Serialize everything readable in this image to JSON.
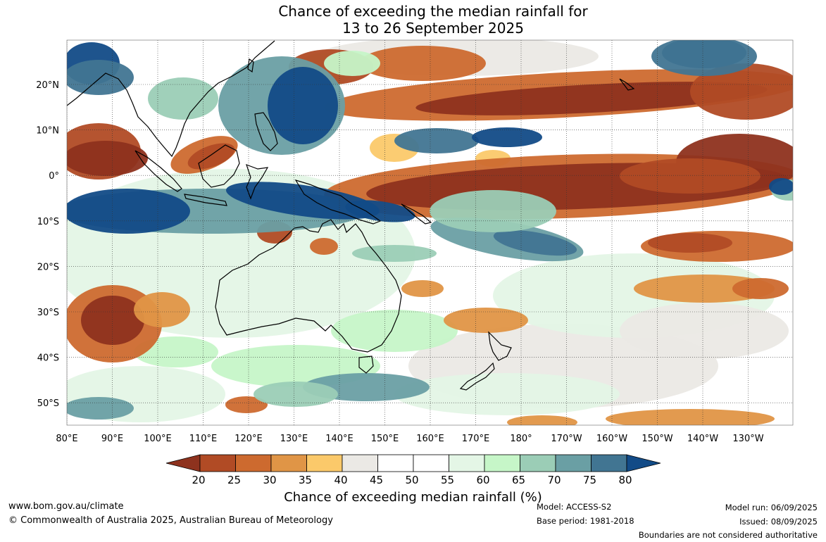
{
  "title": {
    "line1": "Chance of exceeding the median rainfall for",
    "line2": "13 to 26 September 2025"
  },
  "map": {
    "lon_labels": [
      "80°E",
      "90°E",
      "100°E",
      "110°E",
      "120°E",
      "130°E",
      "140°E",
      "150°E",
      "160°E",
      "170°E",
      "180°",
      "170°W",
      "160°W",
      "150°W",
      "140°W",
      "130°W"
    ],
    "lat_labels": [
      "20°N",
      "10°N",
      "0°",
      "10°S",
      "20°S",
      "30°S",
      "40°S",
      "50°S"
    ],
    "colors": {
      "p20": "#8e321e",
      "p25": "#b14b25",
      "p30": "#cd6a2f",
      "p35": "#e09546",
      "p40": "#fbc96a",
      "p45": "#ebe9e5",
      "p50": "#ffffff",
      "p55": "#ffffff",
      "p60": "#e4f6e6",
      "p65": "#c6f6c8",
      "p70": "#9bcdb6",
      "p75": "#6a9fa4",
      "p80": "#417592",
      "p85": "#124b87"
    }
  },
  "legend": {
    "ticks": [
      "20",
      "25",
      "30",
      "35",
      "40",
      "45",
      "50",
      "55",
      "60",
      "65",
      "70",
      "75",
      "80"
    ],
    "segment_colors": [
      "#b14b25",
      "#cd6a2f",
      "#e09546",
      "#fbc96a",
      "#ebe9e5",
      "#ffffff",
      "#ffffff",
      "#e4f6e6",
      "#c6f6c8",
      "#9bcdb6",
      "#6a9fa4",
      "#417592"
    ],
    "low_arrow_color": "#8e321e",
    "high_arrow_color": "#124b87",
    "title": "Chance of exceeding median rainfall (%)"
  },
  "footer": {
    "website": "www.bom.gov.au/climate",
    "copyright": "© Commonwealth of Australia 2025, Australian Bureau of Meteorology",
    "model": "Model: ACCESS-S2",
    "base_period": "Base period: 1981-2018",
    "model_run": "Model run: 06/09/2025",
    "issued": "Issued: 08/09/2025",
    "disclaimer": "Boundaries are not considered authoritative"
  }
}
